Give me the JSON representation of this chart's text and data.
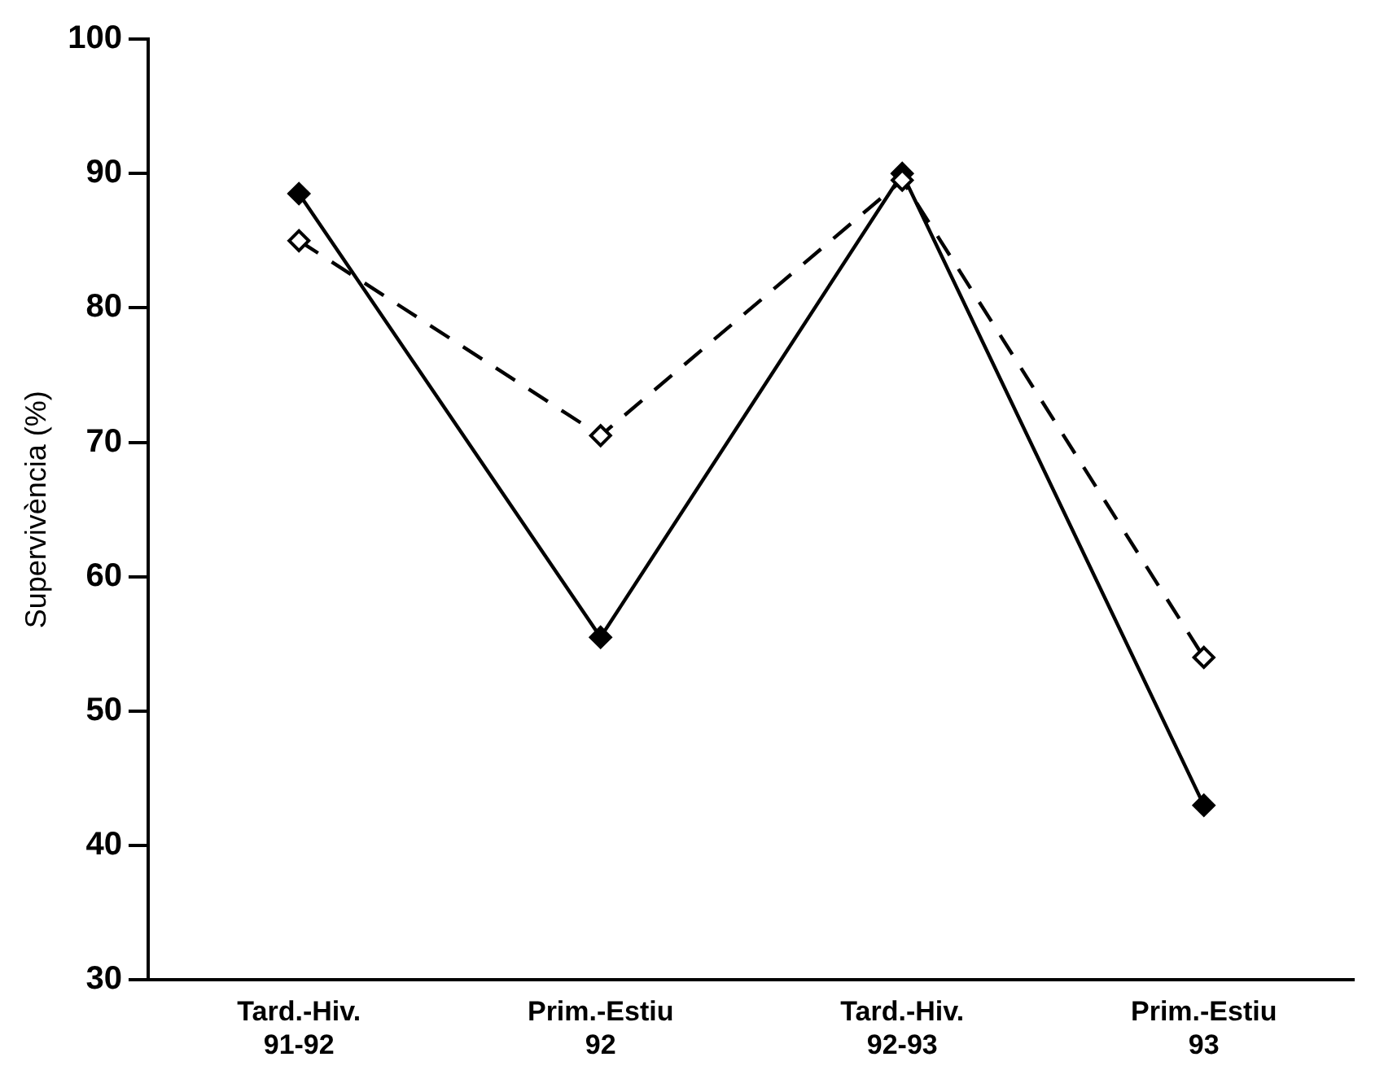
{
  "chart_data": {
    "type": "line",
    "ylabel": "Supervivència (%)",
    "categories": [
      "Tard.-Hiv.\n91-92",
      "Prim.-Estiu\n92",
      "Tard.-Hiv.\n92-93",
      "Prim.-Estiu\n93"
    ],
    "series": [
      {
        "color": "#000000",
        "line_style": "solid",
        "values": [
          88.5,
          55.5,
          90,
          43
        ]
      },
      {
        "color": "#000000",
        "line_style": "dashed",
        "values": [
          85,
          70.5,
          89.5,
          54
        ]
      }
    ],
    "ylim": [
      30,
      100
    ],
    "yticks": [
      30,
      40,
      50,
      60,
      70,
      80,
      90,
      100
    ],
    "grid": false,
    "legend": false,
    "marker": "diamond"
  }
}
